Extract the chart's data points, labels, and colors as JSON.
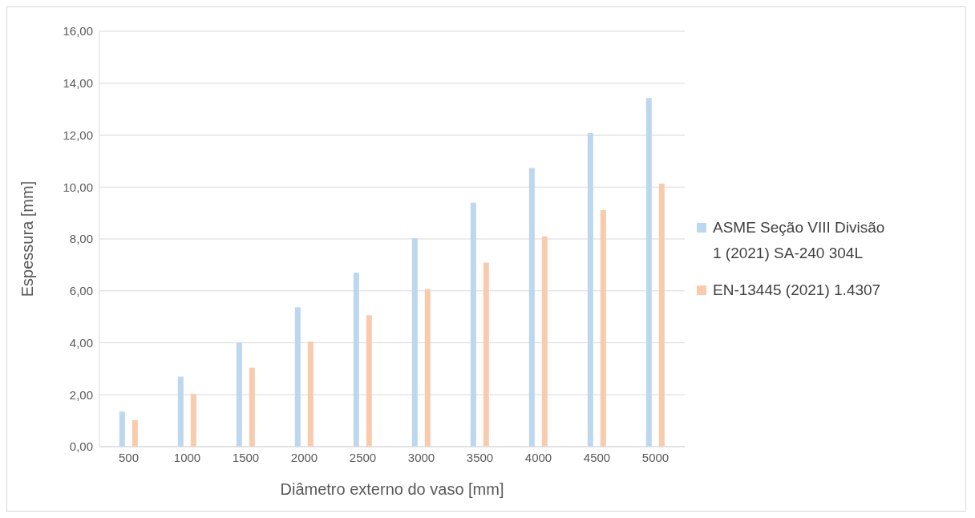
{
  "chart_data": {
    "type": "bar",
    "xlabel": "Diâmetro externo do vaso [mm]",
    "ylabel": "Espessura [mm]",
    "categories": [
      "500",
      "1000",
      "1500",
      "2000",
      "2500",
      "3000",
      "3500",
      "4000",
      "4500",
      "5000"
    ],
    "series": [
      {
        "name": "ASME Seção VIII Divisão 1 (2021) SA-240 304L",
        "color": "#bdd7ee",
        "values": [
          1.35,
          2.7,
          4.0,
          5.37,
          6.7,
          8.03,
          9.4,
          10.73,
          12.08,
          13.43
        ]
      },
      {
        "name": "EN-13445 (2021) 1.4307",
        "color": "#f8cbad",
        "values": [
          1.02,
          2.03,
          3.04,
          4.05,
          5.06,
          6.07,
          7.09,
          8.1,
          9.11,
          10.13
        ]
      }
    ],
    "ylim": [
      0,
      16
    ],
    "yticks": [
      {
        "value": 0,
        "label": "0,00"
      },
      {
        "value": 2,
        "label": "2,00"
      },
      {
        "value": 4,
        "label": "4,00"
      },
      {
        "value": 6,
        "label": "6,00"
      },
      {
        "value": 8,
        "label": "8,00"
      },
      {
        "value": 10,
        "label": "10,00"
      },
      {
        "value": 12,
        "label": "12,00"
      },
      {
        "value": 14,
        "label": "14,00"
      },
      {
        "value": 16,
        "label": "16,00"
      }
    ],
    "grid": "y",
    "legend": "right"
  }
}
